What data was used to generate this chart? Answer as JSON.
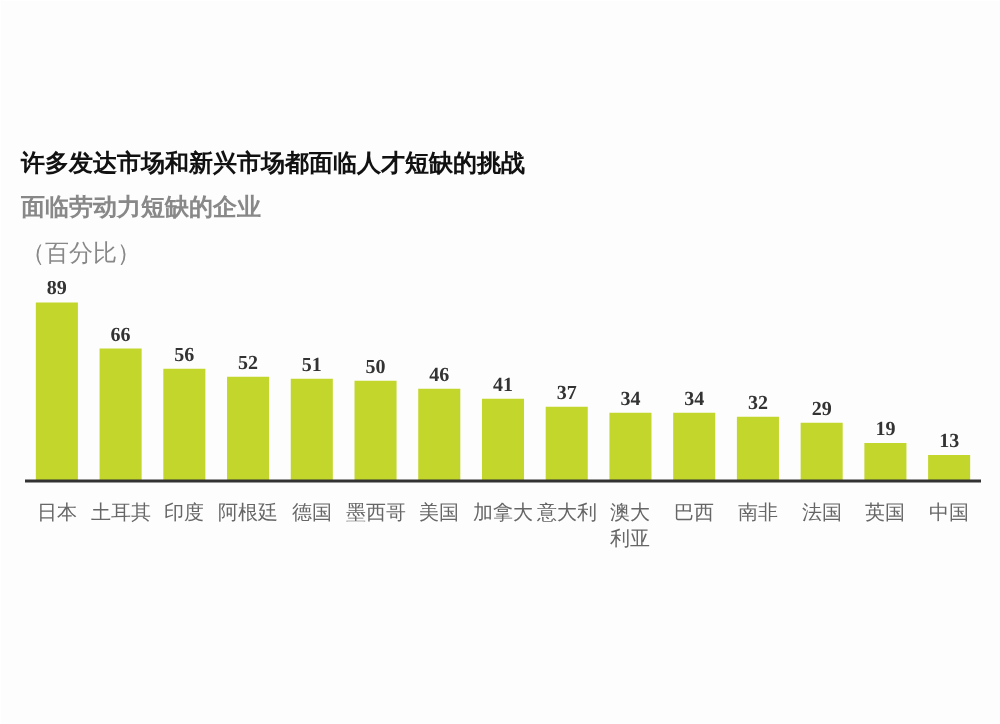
{
  "chart_data": {
    "type": "bar",
    "title": "许多发达市场和新兴市场都面临人才短缺的挑战",
    "subtitle": "面临劳动力短缺的企业",
    "ylabel": "（百分比）",
    "categories": [
      "日本",
      "土耳其",
      "印度",
      "阿根廷",
      "德国",
      "墨西哥",
      "美国",
      "加拿大",
      "意大利",
      "澳大利亚",
      "巴西",
      "南非",
      "法国",
      "英国",
      "中国"
    ],
    "values": [
      89,
      66,
      56,
      52,
      51,
      50,
      46,
      41,
      37,
      34,
      34,
      32,
      29,
      19,
      13
    ],
    "color": "#c3d62c",
    "data_labels": true,
    "grid": false
  }
}
